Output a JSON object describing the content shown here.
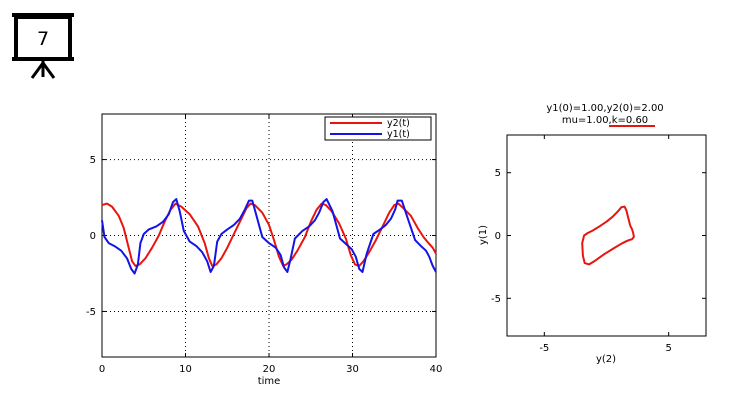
{
  "slide_badge": {
    "number": "7",
    "icon": "presentation-board-icon"
  },
  "chart_data": [
    {
      "type": "line",
      "xlabel": "time",
      "ylabel": "",
      "xlim": [
        0,
        40
      ],
      "ylim": [
        -8,
        8
      ],
      "xticks": [
        "0",
        "10",
        "20",
        "30",
        "40"
      ],
      "yticks": [
        "5",
        "0",
        "-5"
      ],
      "grid": true,
      "legend_position": "top-right",
      "series": [
        {
          "name": "y2(t)",
          "color": "#e8150f",
          "x": [
            0,
            0.6,
            1.2,
            2,
            2.6,
            3.1,
            3.6,
            4,
            4.5,
            5.2,
            6,
            6.8,
            7.5,
            8.2,
            8.8,
            9.5,
            10.5,
            11.5,
            12.3,
            12.8,
            13.2,
            13.7,
            14.3,
            15,
            15.8,
            16.6,
            17.3,
            17.8,
            18.3,
            19.2,
            20,
            20.6,
            21.2,
            21.7,
            22.1,
            22.7,
            23.4,
            24.3,
            25,
            25.7,
            26.3,
            26.8,
            27.5,
            28.4,
            29.2,
            29.8,
            30.3,
            30.8,
            31.3,
            32,
            32.8,
            33.6,
            34.4,
            35,
            35.5,
            36.1,
            37,
            37.8,
            38.5,
            39.1,
            39.6,
            40
          ],
          "y": [
            2.0,
            2.1,
            1.9,
            1.3,
            0.5,
            -0.6,
            -1.7,
            -2.0,
            -1.9,
            -1.5,
            -0.8,
            0.0,
            0.9,
            1.7,
            2.1,
            1.9,
            1.4,
            0.6,
            -0.5,
            -1.5,
            -2.0,
            -1.9,
            -1.5,
            -0.8,
            0.1,
            1.0,
            1.8,
            2.1,
            2.0,
            1.5,
            0.7,
            -0.3,
            -1.4,
            -2.0,
            -1.9,
            -1.6,
            -1.0,
            -0.1,
            0.9,
            1.7,
            2.1,
            2.0,
            1.6,
            0.8,
            -0.2,
            -1.3,
            -1.9,
            -2.0,
            -1.7,
            -1.1,
            -0.3,
            0.6,
            1.5,
            2.0,
            2.1,
            1.8,
            1.3,
            0.5,
            -0.1,
            -0.5,
            -0.8,
            -1.2
          ]
        },
        {
          "name": "y1(t)",
          "color": "#1414e6",
          "x": [
            0,
            0.3,
            0.8,
            1.5,
            2.3,
            3.0,
            3.5,
            3.9,
            4.3,
            4.6,
            5.0,
            5.6,
            6.5,
            7.3,
            8.0,
            8.5,
            8.9,
            9.3,
            9.8,
            10.5,
            11.3,
            12.0,
            12.6,
            13.0,
            13.4,
            13.8,
            14.3,
            15.0,
            15.8,
            16.5,
            17.1,
            17.6,
            18.0,
            18.5,
            19.2,
            20.0,
            20.8,
            21.4,
            21.8,
            22.2,
            22.6,
            23.1,
            24.0,
            24.8,
            25.5,
            26.0,
            26.5,
            26.9,
            27.6,
            28.5,
            29.3,
            29.9,
            30.4,
            30.8,
            31.2,
            31.7,
            32.5,
            33.3,
            34.0,
            34.6,
            35.1,
            35.4,
            35.9,
            36.7,
            37.5,
            38.2,
            38.8,
            39.2,
            39.6,
            40
          ],
          "y": [
            1.0,
            -0.1,
            -0.5,
            -0.7,
            -1.0,
            -1.5,
            -2.2,
            -2.5,
            -1.9,
            -0.5,
            0.1,
            0.4,
            0.6,
            0.9,
            1.4,
            2.2,
            2.4,
            1.6,
            0.3,
            -0.4,
            -0.7,
            -1.1,
            -1.7,
            -2.4,
            -2.0,
            -0.4,
            0.1,
            0.4,
            0.7,
            1.1,
            1.7,
            2.3,
            2.3,
            1.3,
            -0.1,
            -0.5,
            -0.8,
            -1.3,
            -2.1,
            -2.4,
            -1.5,
            -0.2,
            0.3,
            0.6,
            1.0,
            1.5,
            2.2,
            2.4,
            1.6,
            -0.2,
            -0.6,
            -0.9,
            -1.4,
            -2.2,
            -2.4,
            -1.2,
            0.1,
            0.4,
            0.7,
            1.1,
            1.7,
            2.3,
            2.3,
            1.0,
            -0.3,
            -0.7,
            -1.0,
            -1.4,
            -2.0,
            -2.4
          ]
        }
      ]
    },
    {
      "type": "line",
      "title": "y1(0)=1.00,y2(0)=2.00",
      "subtitle": "mu=1.00,k=0.60",
      "xlabel": "y(2)",
      "ylabel": "y(1)",
      "xlim": [
        -8,
        8
      ],
      "ylim": [
        -8,
        8
      ],
      "xticks": [
        "-5",
        "5"
      ],
      "yticks": [
        "5",
        "0",
        "-5"
      ],
      "grid": false,
      "series": [
        {
          "color": "#e8150f",
          "x": [
            1.9,
            2.05,
            2.15,
            2.2,
            2.05,
            1.85,
            1.6,
            1.2,
            0.6,
            -0.2,
            -0.9,
            -1.4,
            -1.75,
            -1.9,
            -1.95,
            -1.8,
            -1.5,
            -1.1,
            -0.6,
            0.0,
            0.5,
            0.9,
            1.2,
            1.45,
            1.6,
            1.7,
            1.8,
            1.9
          ],
          "y": [
            0.8,
            0.5,
            0.2,
            -0.1,
            -0.3,
            -0.35,
            -0.45,
            -0.65,
            -1.0,
            -1.5,
            -2.0,
            -2.3,
            -2.2,
            -1.6,
            -0.6,
            0.0,
            0.2,
            0.4,
            0.7,
            1.1,
            1.5,
            1.9,
            2.25,
            2.3,
            2.0,
            1.6,
            1.2,
            0.8
          ]
        }
      ]
    }
  ]
}
